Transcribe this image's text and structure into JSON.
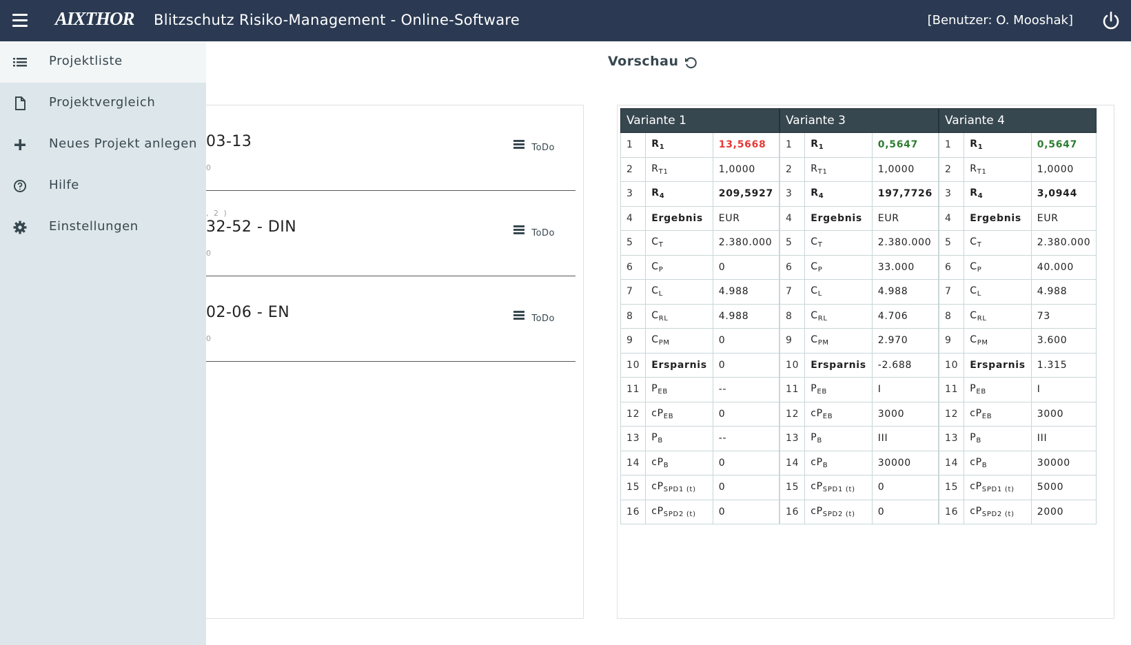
{
  "header": {
    "logo": "AIXTHOR",
    "title": "Blitzschutz Risiko-Management - Online-Software",
    "user": "[Benutzer: O. Mooshak]"
  },
  "sidebar": {
    "items": [
      {
        "label": "Projektliste",
        "icon": "list-icon"
      },
      {
        "label": "Projektvergleich",
        "icon": "file-icon"
      },
      {
        "label": "Neues Projekt anlegen",
        "icon": "plus-icon"
      },
      {
        "label": "Hilfe",
        "icon": "help-icon"
      },
      {
        "label": "Einstellungen",
        "icon": "gear-icon"
      }
    ]
  },
  "main": {
    "preview_title": "Vorschau",
    "projects": [
      {
        "number": "03-13",
        "sub": "0",
        "sup": "",
        "status": "ToDo"
      },
      {
        "number": "32-52 - DIN",
        "sub": "0",
        "sup": ", 2 )",
        "status": "ToDo"
      },
      {
        "number": "02-06 - EN",
        "sub": "0",
        "sup": "",
        "status": "ToDo"
      }
    ]
  },
  "variants": [
    {
      "title": "Variante 1",
      "values": [
        "13,5668",
        "1,0000",
        "209,5927",
        "EUR",
        "2.380.000",
        "0",
        "4.988",
        "4.988",
        "0",
        "0",
        "--",
        "0",
        "--",
        "0",
        "0",
        "0"
      ]
    },
    {
      "title": "Variante 3",
      "values": [
        "0,5647",
        "1,0000",
        "197,7726",
        "EUR",
        "2.380.000",
        "33.000",
        "4.988",
        "4.706",
        "2.970",
        "-2.688",
        "I",
        "3000",
        "III",
        "30000",
        "0",
        "0"
      ]
    },
    {
      "title": "Variante 4",
      "values": [
        "0,5647",
        "1,0000",
        "3,0944",
        "EUR",
        "2.380.000",
        "40.000",
        "4.988",
        "73",
        "3.600",
        "1.315",
        "I",
        "3000",
        "III",
        "30000",
        "5000",
        "2000"
      ]
    }
  ],
  "rows": [
    {
      "n": "1",
      "base": "R",
      "sub": "1",
      "bold": true
    },
    {
      "n": "2",
      "base": "R",
      "sub": "T1",
      "bold": false
    },
    {
      "n": "3",
      "base": "R",
      "sub": "4",
      "bold": true
    },
    {
      "n": "4",
      "base": "Ergebnis",
      "sub": "",
      "bold": true
    },
    {
      "n": "5",
      "base": "C",
      "sub": "T",
      "bold": false
    },
    {
      "n": "6",
      "base": "C",
      "sub": "P",
      "bold": false
    },
    {
      "n": "7",
      "base": "C",
      "sub": "L",
      "bold": false
    },
    {
      "n": "8",
      "base": "C",
      "sub": "RL",
      "bold": false
    },
    {
      "n": "9",
      "base": "C",
      "sub": "PM",
      "bold": false
    },
    {
      "n": "10",
      "base": "Ersparnis",
      "sub": "",
      "bold": true
    },
    {
      "n": "11",
      "base": "P",
      "sub": "EB",
      "bold": false
    },
    {
      "n": "12",
      "base": "cP",
      "sub": "EB",
      "bold": false
    },
    {
      "n": "13",
      "base": "P",
      "sub": "B",
      "bold": false
    },
    {
      "n": "14",
      "base": "cP",
      "sub": "B",
      "bold": false
    },
    {
      "n": "15",
      "base": "cP",
      "sub": "SPD1 (t)",
      "bold": false
    },
    {
      "n": "16",
      "base": "cP",
      "sub": "SPD2 (t)",
      "bold": false
    }
  ],
  "value_styles": {
    "row1_variant1": "red",
    "row1_variant3": "green",
    "row1_variant4": "green",
    "row3_bold": true
  },
  "colors": {
    "topbar": "#2b3a52",
    "sidebar": "#dde6ea",
    "table_header": "#37474f",
    "risk_high": "#e53935",
    "risk_ok": "#2e7d32"
  }
}
